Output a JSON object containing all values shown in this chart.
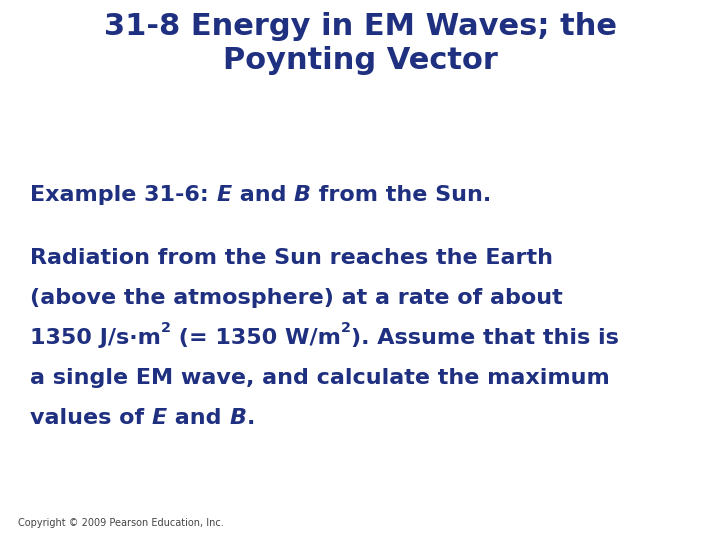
{
  "title_line1": "31-8 Energy in EM Waves; the",
  "title_line2": "Poynting Vector",
  "title_color": "#1F3080",
  "title_fontsize": 22,
  "body_color": "#1F3080",
  "body_fontsize": 16,
  "copyright": "Copyright © 2009 Pearson Education, Inc.",
  "copyright_fontsize": 7,
  "background_color": "#ffffff",
  "fig_width": 7.2,
  "fig_height": 5.4,
  "dpi": 100
}
